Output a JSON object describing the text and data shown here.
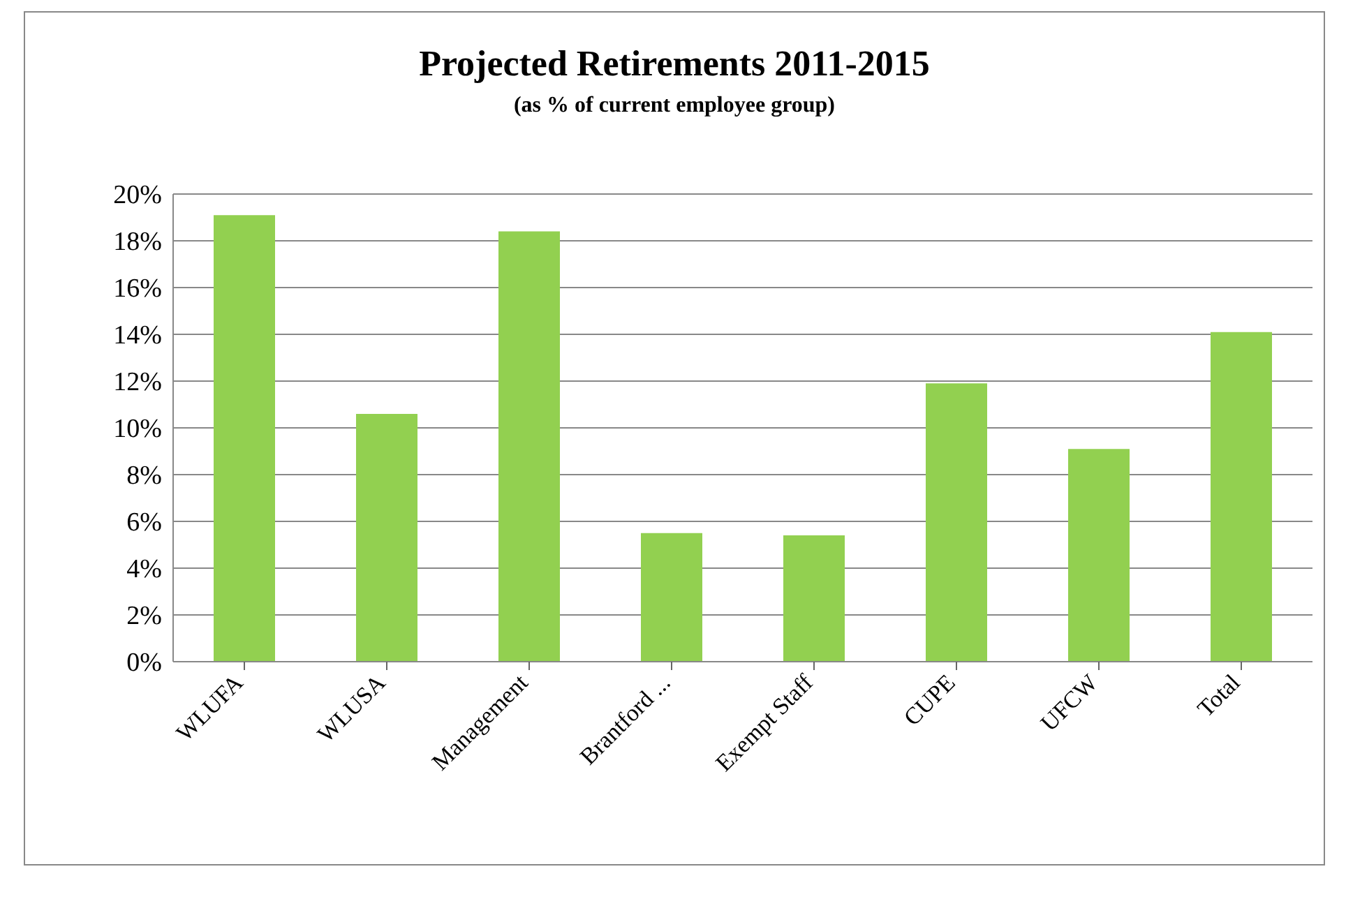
{
  "chart_data": {
    "type": "bar",
    "title": "Projected Retirements 2011-2015",
    "subtitle": "(as % of current employee group)",
    "categories": [
      "WLUFA",
      "WLUSA",
      "Management",
      "Brantford ...",
      "Exempt Staff",
      "CUPE",
      "UFCW",
      "Total"
    ],
    "values": [
      19.1,
      10.6,
      18.4,
      5.5,
      5.4,
      11.9,
      9.1,
      14.1
    ],
    "color": "#92d050",
    "ylim": [
      0,
      20
    ],
    "yticks": [
      {
        "value": 0,
        "label": "0%"
      },
      {
        "value": 2,
        "label": "2%"
      },
      {
        "value": 4,
        "label": "4%"
      },
      {
        "value": 6,
        "label": "6%"
      },
      {
        "value": 8,
        "label": "8%"
      },
      {
        "value": 10,
        "label": "10%"
      },
      {
        "value": 12,
        "label": "12%"
      },
      {
        "value": 14,
        "label": "14%"
      },
      {
        "value": 16,
        "label": "16%"
      },
      {
        "value": 18,
        "label": "18%"
      },
      {
        "value": 20,
        "label": "20%"
      }
    ],
    "grid": "y",
    "legend": false
  }
}
